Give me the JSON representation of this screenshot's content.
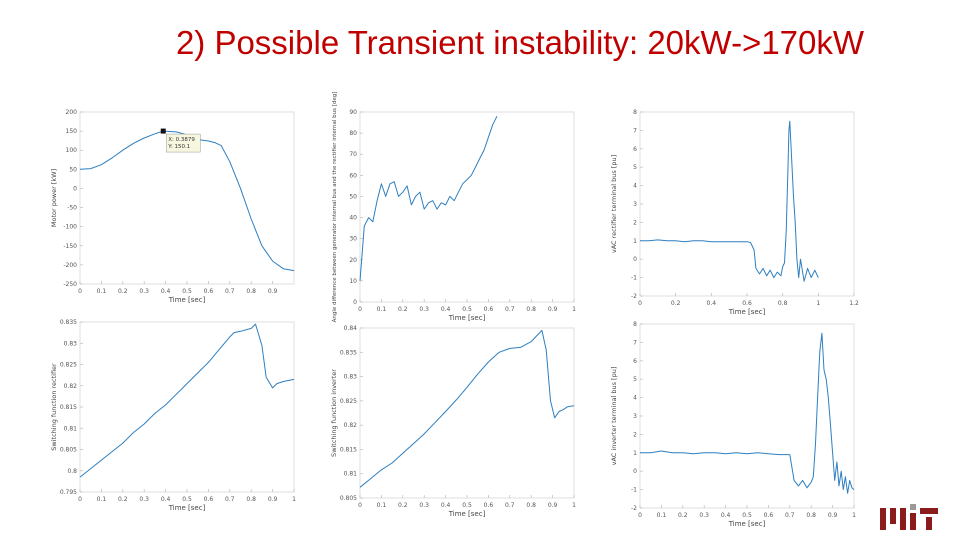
{
  "slide": {
    "title": "2) Possible Transient instability: 20kW->170kW",
    "accent_color": "#c00000",
    "line_color": "#2e7fc0",
    "logo_color": "#8a1c1c"
  },
  "chart_data": [
    {
      "type": "line",
      "ylabel": "Motor power [kW]",
      "xlabel": "Time [sec]",
      "xlim": [
        0,
        1
      ],
      "ylim": [
        -250,
        200
      ],
      "xticks": [
        "0",
        "0.1",
        "0.2",
        "0.3",
        "0.4",
        "0.5",
        "0.6",
        "0.7",
        "0.8",
        "0.9"
      ],
      "yticks": [
        "200",
        "150",
        "100",
        "50",
        "0",
        "-50",
        "-100",
        "-150",
        "-200",
        "-250"
      ],
      "grid": false,
      "series": [
        {
          "x": [
            0,
            0.05,
            0.1,
            0.15,
            0.2,
            0.25,
            0.3,
            0.35,
            0.389,
            0.45,
            0.5,
            0.55,
            0.6,
            0.63,
            0.66,
            0.7,
            0.75,
            0.8,
            0.85,
            0.9,
            0.95,
            1.0
          ],
          "y": [
            50,
            52,
            62,
            80,
            100,
            118,
            132,
            143,
            150,
            148,
            140,
            128,
            124,
            120,
            112,
            70,
            0,
            -80,
            -150,
            -190,
            -210,
            -215
          ]
        }
      ],
      "annotation": {
        "x": 0.389,
        "y": 150.1,
        "lines": [
          "X: 0.3879",
          "Y: 150.1"
        ]
      }
    },
    {
      "type": "line",
      "ylabel": "Angle difference between generator internal bus and the rectifier internal bus [deg]",
      "xlabel": "Time [sec]",
      "xlim": [
        0,
        1
      ],
      "ylim": [
        0,
        90
      ],
      "xticks": [
        "0",
        "0.1",
        "0.2",
        "0.3",
        "0.4",
        "0.5",
        "0.6",
        "0.7",
        "0.8",
        "0.9",
        "1"
      ],
      "yticks": [
        "90",
        "80",
        "70",
        "60",
        "50",
        "40",
        "30",
        "20",
        "10",
        "0"
      ],
      "grid": false,
      "series": [
        {
          "x": [
            0,
            0.02,
            0.04,
            0.06,
            0.08,
            0.1,
            0.12,
            0.14,
            0.16,
            0.18,
            0.2,
            0.22,
            0.24,
            0.26,
            0.28,
            0.3,
            0.32,
            0.34,
            0.36,
            0.38,
            0.4,
            0.42,
            0.44,
            0.46,
            0.48,
            0.5,
            0.52,
            0.54,
            0.56,
            0.58,
            0.6,
            0.62,
            0.64
          ],
          "y": [
            10,
            36,
            40,
            38,
            48,
            56,
            50,
            56,
            57,
            50,
            52,
            55,
            46,
            50,
            52,
            44,
            47,
            48,
            44,
            47,
            46,
            50,
            48,
            52,
            56,
            58,
            60,
            64,
            68,
            72,
            78,
            84,
            88
          ]
        }
      ]
    },
    {
      "type": "line",
      "ylabel": "vAC rectifier terminal bus [pu]",
      "xlabel": "Time [sec]",
      "xlim": [
        0,
        1.2
      ],
      "ylim": [
        -2,
        8
      ],
      "xticks": [
        "0",
        "0.2",
        "0.4",
        "0.6",
        "0.8",
        "1",
        "1.2"
      ],
      "yticks": [
        "8",
        "7",
        "6",
        "5",
        "4",
        "3",
        "2",
        "1",
        "0",
        "-1",
        "-2"
      ],
      "grid": false,
      "series": [
        {
          "x": [
            0,
            0.05,
            0.1,
            0.15,
            0.2,
            0.25,
            0.3,
            0.35,
            0.4,
            0.45,
            0.5,
            0.55,
            0.6,
            0.62,
            0.64,
            0.65,
            0.67,
            0.69,
            0.71,
            0.73,
            0.75,
            0.77,
            0.79,
            0.8,
            0.81,
            0.82,
            0.83,
            0.835,
            0.84,
            0.845,
            0.85,
            0.855,
            0.86,
            0.87,
            0.88,
            0.89,
            0.9,
            0.92,
            0.94,
            0.96,
            0.98,
            1.0
          ],
          "y": [
            1,
            1,
            1.05,
            1,
            1,
            0.95,
            1,
            1,
            0.95,
            0.95,
            0.95,
            0.95,
            0.95,
            0.9,
            0.5,
            -0.5,
            -0.8,
            -0.5,
            -0.9,
            -0.6,
            -1,
            -0.7,
            -0.9,
            -0.4,
            -0.2,
            1.5,
            5,
            7,
            7.5,
            6.5,
            5.5,
            4.5,
            3.5,
            2,
            0,
            -1,
            0,
            -1.2,
            -0.5,
            -1,
            -0.6,
            -1
          ]
        }
      ]
    },
    {
      "type": "line",
      "ylabel": "Switching function rectifier",
      "xlabel": "Time [sec]",
      "xlim": [
        0,
        1
      ],
      "ylim": [
        0.795,
        0.835
      ],
      "xticks": [
        "0",
        "0.1",
        "0.2",
        "0.3",
        "0.4",
        "0.5",
        "0.6",
        "0.7",
        "0.8",
        "0.9",
        "1"
      ],
      "yticks": [
        "0.835",
        "0.83",
        "0.825",
        "0.82",
        "0.815",
        "0.81",
        "0.805",
        "0.8",
        "0.795"
      ],
      "grid": false,
      "series": [
        {
          "x": [
            0,
            0.05,
            0.1,
            0.15,
            0.2,
            0.25,
            0.3,
            0.35,
            0.4,
            0.45,
            0.5,
            0.55,
            0.6,
            0.65,
            0.7,
            0.72,
            0.75,
            0.8,
            0.82,
            0.85,
            0.87,
            0.9,
            0.92,
            0.95,
            1.0
          ],
          "y": [
            0.7985,
            0.8005,
            0.8025,
            0.8045,
            0.8065,
            0.809,
            0.811,
            0.8135,
            0.8155,
            0.818,
            0.8205,
            0.823,
            0.8255,
            0.8285,
            0.8315,
            0.8325,
            0.8328,
            0.8335,
            0.8345,
            0.8295,
            0.822,
            0.8195,
            0.8205,
            0.821,
            0.8215
          ]
        }
      ]
    },
    {
      "type": "line",
      "ylabel": "Switching function inverter",
      "xlabel": "Time [sec]",
      "xlim": [
        0,
        1
      ],
      "ylim": [
        0.805,
        0.84
      ],
      "xticks": [
        "0",
        "0.1",
        "0.2",
        "0.3",
        "0.4",
        "0.5",
        "0.6",
        "0.7",
        "0.8",
        "0.9",
        "1"
      ],
      "yticks": [
        "0.84",
        "0.835",
        "0.83",
        "0.825",
        "0.82",
        "0.815",
        "0.81",
        "0.805"
      ],
      "grid": false,
      "series": [
        {
          "x": [
            0,
            0.05,
            0.1,
            0.15,
            0.2,
            0.25,
            0.3,
            0.35,
            0.4,
            0.45,
            0.5,
            0.55,
            0.6,
            0.65,
            0.7,
            0.75,
            0.8,
            0.85,
            0.87,
            0.89,
            0.91,
            0.93,
            0.95,
            0.97,
            1.0
          ],
          "y": [
            0.8072,
            0.809,
            0.8108,
            0.8122,
            0.8142,
            0.8162,
            0.8182,
            0.8205,
            0.8228,
            0.8252,
            0.8278,
            0.8305,
            0.833,
            0.835,
            0.8358,
            0.836,
            0.8372,
            0.8395,
            0.8355,
            0.825,
            0.8215,
            0.8228,
            0.8232,
            0.8238,
            0.824
          ]
        }
      ]
    },
    {
      "type": "line",
      "ylabel": "vAC inverter terminal bus [pu]",
      "xlabel": "Time [sec]",
      "xlim": [
        0,
        1
      ],
      "ylim": [
        -2,
        8
      ],
      "xticks": [
        "0",
        "0.1",
        "0.2",
        "0.3",
        "0.4",
        "0.5",
        "0.6",
        "0.7",
        "0.8",
        "0.9",
        "1"
      ],
      "yticks": [
        "8",
        "7",
        "6",
        "5",
        "4",
        "3",
        "2",
        "1",
        "0",
        "-1",
        "-2"
      ],
      "grid": false,
      "series": [
        {
          "x": [
            0,
            0.05,
            0.1,
            0.15,
            0.2,
            0.25,
            0.3,
            0.35,
            0.4,
            0.45,
            0.5,
            0.55,
            0.6,
            0.65,
            0.7,
            0.72,
            0.74,
            0.76,
            0.78,
            0.8,
            0.81,
            0.82,
            0.83,
            0.84,
            0.85,
            0.86,
            0.87,
            0.88,
            0.89,
            0.9,
            0.91,
            0.92,
            0.93,
            0.94,
            0.95,
            0.96,
            0.97,
            0.98,
            0.99,
            1.0
          ],
          "y": [
            1,
            1,
            1.1,
            1,
            1,
            0.95,
            1,
            1,
            0.95,
            1,
            0.95,
            1,
            0.95,
            0.9,
            0.9,
            -0.5,
            -0.8,
            -0.5,
            -0.9,
            -0.6,
            -0.3,
            1.5,
            4,
            6.5,
            7.5,
            5.5,
            5,
            4,
            2.5,
            1,
            -0.5,
            0.5,
            -0.8,
            0,
            -1,
            -0.3,
            -1.2,
            -0.5,
            -0.9,
            -1
          ]
        }
      ]
    }
  ]
}
